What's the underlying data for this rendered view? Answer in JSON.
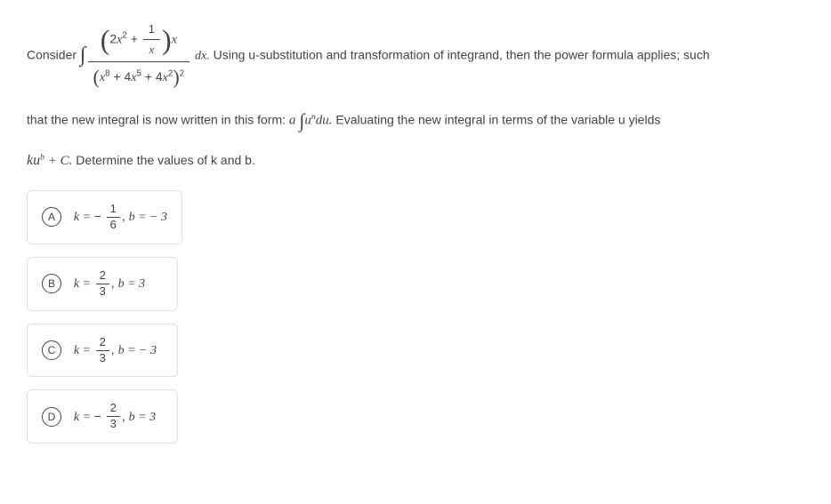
{
  "question": {
    "consider_text": "Consider",
    "usub_text": " Using u-substitution and transformation of integrand, then the power formula applies; such",
    "line2_pre": "that the new integral is now written in this form: ",
    "line2_post": " Evaluating the new integral in terms of the variable u yields",
    "line3_pre": "",
    "line3_post": " Determine the values of k and b.",
    "integrand_num_coeff": "2",
    "integrand_num_var": "x",
    "integrand_num_exp": "2",
    "integrand_num_plus": " + ",
    "integrand_frac_top": "1",
    "integrand_frac_bot_var": "x",
    "integrand_trailing": "x",
    "den_x8": "x",
    "den_x8_exp": "8",
    "den_plus1": " + 4",
    "den_x5": "x",
    "den_x5_exp": "5",
    "den_plus2": " + 4",
    "den_x2": "x",
    "den_x2_exp": "2",
    "den_outer_exp": "2",
    "dx": "dx.",
    "form_a": "a",
    "form_u": "u",
    "form_n": "n",
    "form_du": "du.",
    "result_k": "k",
    "result_u": "u",
    "result_b": "b",
    "result_plus_c": " + C."
  },
  "options": {
    "A": {
      "letter": "A",
      "k_lhs": "k = ",
      "k_sign": "− ",
      "k_num": "1",
      "k_den": "6",
      "comma": ", ",
      "b_expr": "b = − 3"
    },
    "B": {
      "letter": "B",
      "k_lhs": "k = ",
      "k_sign": "",
      "k_num": "2",
      "k_den": "3",
      "comma": ", ",
      "b_expr": "b = 3"
    },
    "C": {
      "letter": "C",
      "k_lhs": "k = ",
      "k_sign": "",
      "k_num": "2",
      "k_den": "3",
      "comma": ", ",
      "b_expr": "b = − 3"
    },
    "D": {
      "letter": "D",
      "k_lhs": "k = ",
      "k_sign": "− ",
      "k_num": "2",
      "k_den": "3",
      "comma": ", ",
      "b_expr": "b = 3"
    }
  }
}
